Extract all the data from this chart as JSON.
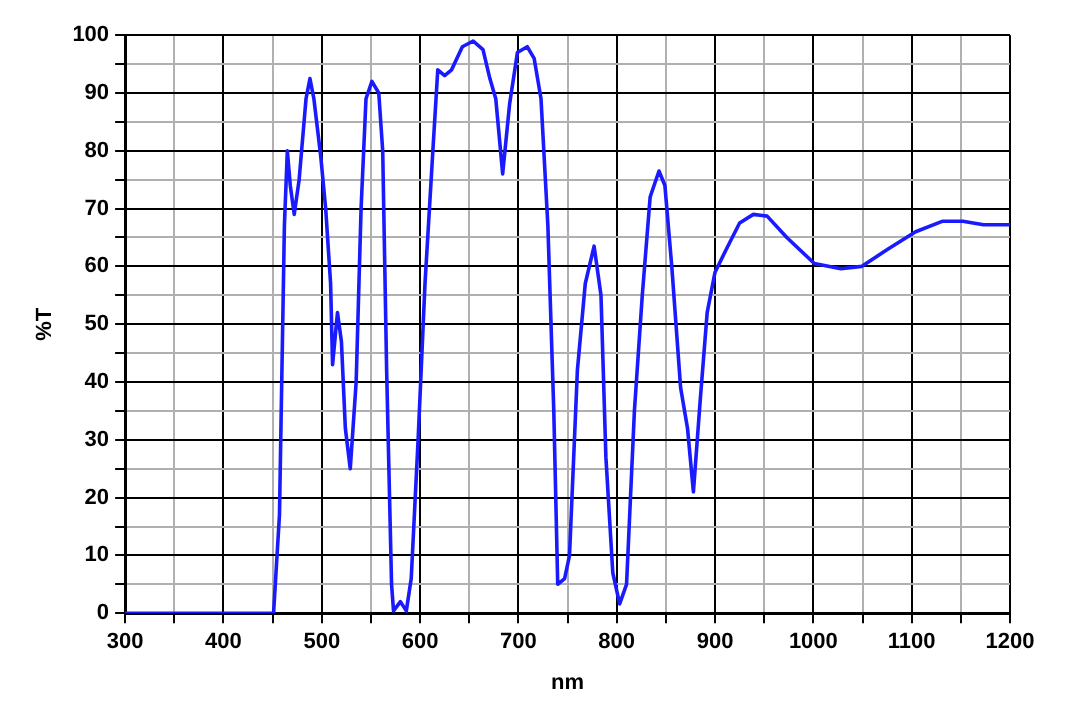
{
  "chart_data": {
    "type": "line",
    "xlabel": "nm",
    "ylabel": "%T",
    "xlim": [
      300,
      1200
    ],
    "ylim": [
      0,
      100
    ],
    "xticks": [
      300,
      {
        "value": 350,
        "label": null
      },
      400,
      {
        "value": 450,
        "label": null
      },
      500,
      {
        "value": 550,
        "label": null
      },
      600,
      {
        "value": 650,
        "label": null
      },
      700,
      {
        "value": 750,
        "label": null
      },
      800,
      {
        "value": 850,
        "label": null
      },
      900,
      {
        "value": 950,
        "label": null
      },
      1000,
      {
        "value": 1050,
        "label": null
      },
      1100,
      {
        "value": 1150,
        "label": null
      },
      1200
    ],
    "yticks": [
      0,
      {
        "value": 5,
        "label": null
      },
      10,
      {
        "value": 15,
        "label": null
      },
      20,
      {
        "value": 25,
        "label": null
      },
      30,
      {
        "value": 35,
        "label": null
      },
      40,
      {
        "value": 45,
        "label": null
      },
      50,
      {
        "value": 55,
        "label": null
      },
      60,
      {
        "value": 65,
        "label": null
      },
      70,
      {
        "value": 75,
        "label": null
      },
      80,
      {
        "value": 85,
        "label": null
      },
      90,
      {
        "value": 95,
        "label": null
      },
      100
    ],
    "grid": true,
    "legend": false,
    "marker": "none",
    "line_style": "solid",
    "series": [
      {
        "color": "#1a1aff",
        "x": [
          300,
          451,
          457,
          462,
          465,
          468,
          472,
          477,
          484,
          488,
          492,
          499,
          504,
          509,
          511,
          516,
          520,
          524,
          529,
          535,
          540,
          545,
          551,
          558,
          562,
          566,
          571,
          573,
          580,
          586,
          591,
          598,
          605,
          613,
          618,
          625,
          632,
          643,
          654,
          664,
          671,
          677,
          684,
          691,
          699,
          709,
          716,
          723,
          730,
          736,
          740,
          747,
          752,
          760,
          768,
          777,
          784,
          789,
          796,
          803,
          810,
          818,
          826,
          834,
          843,
          849,
          856,
          865,
          872,
          878,
          885,
          892,
          900,
          913,
          925,
          939,
          953,
          973,
          1001,
          1028,
          1049,
          1076,
          1104,
          1131,
          1152,
          1173,
          1200
        ],
        "values": [
          0,
          0,
          17,
          67,
          80,
          74,
          69,
          75,
          89,
          92.5,
          89,
          79,
          70,
          57,
          43,
          52,
          47,
          32,
          25,
          40,
          70,
          89,
          92,
          90,
          80,
          42,
          5,
          0.4,
          2,
          0.4,
          6,
          30,
          57,
          80,
          94,
          93,
          94,
          98,
          99,
          97.5,
          92.5,
          89,
          76,
          88,
          97,
          98,
          96,
          89,
          67,
          35,
          5,
          6,
          10,
          42,
          57,
          63.5,
          55,
          27,
          7,
          1.6,
          5,
          35,
          55,
          72,
          76.5,
          74,
          60,
          39,
          32,
          21,
          37,
          52,
          59,
          63.5,
          67.5,
          69,
          68.7,
          65,
          60.5,
          59.6,
          60,
          63,
          66,
          67.8,
          67.8,
          67.2,
          67.2
        ]
      }
    ]
  }
}
